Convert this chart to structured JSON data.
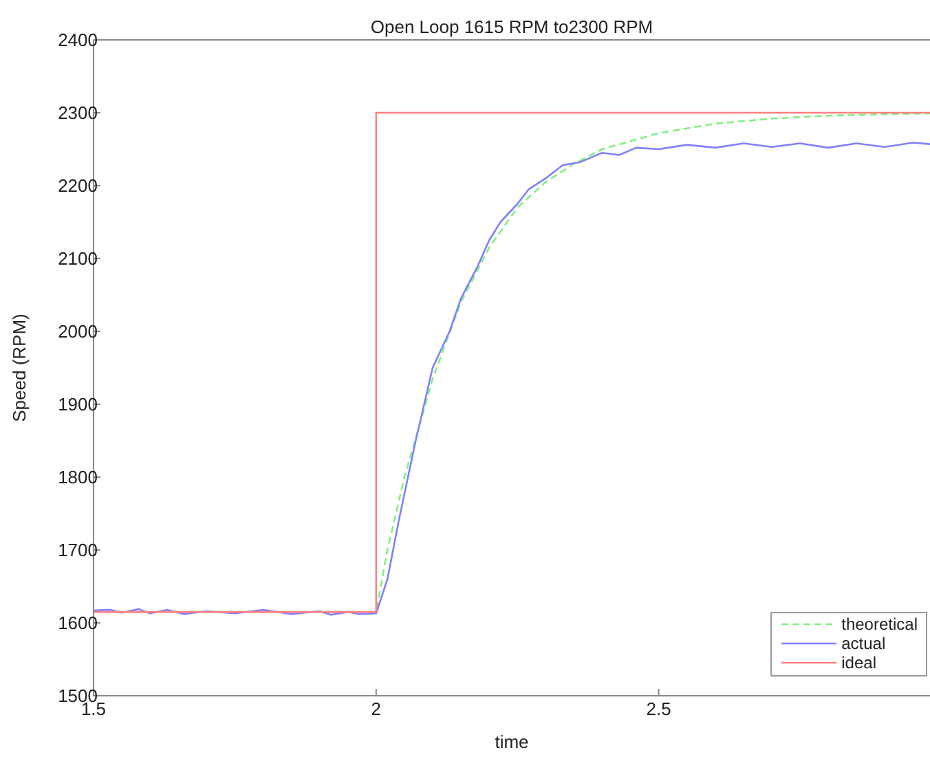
{
  "chart_data": {
    "type": "line",
    "title": "Open Loop 1615 RPM to2300 RPM",
    "xlabel": "time",
    "ylabel": "Speed (RPM)",
    "xlim": [
      1.5,
      2.98
    ],
    "xticks": [
      1.5,
      2,
      2.5
    ],
    "ylim": [
      1500,
      2400
    ],
    "yticks": [
      1500,
      1600,
      1700,
      1800,
      1900,
      2000,
      2100,
      2200,
      2300,
      2400
    ],
    "grid": false,
    "legend": "bottom right",
    "marker": "none",
    "series": [
      {
        "name": "theoretical",
        "color": "#80f080",
        "line_style": "dashed",
        "x": [
          1.5,
          2,
          2.02,
          2.05,
          2.08,
          2.1,
          2.15,
          2.2,
          2.25,
          2.3,
          2.35,
          2.4,
          2.5,
          2.6,
          2.7,
          2.8,
          2.9,
          2.98
        ],
        "values": [
          1615,
          1615,
          1700,
          1800,
          1880,
          1935,
          2040,
          2115,
          2170,
          2205,
          2230,
          2250,
          2272,
          2285,
          2292,
          2296,
          2298,
          2299
        ]
      },
      {
        "name": "actual",
        "color": "#8080ff",
        "line_style": "solid",
        "x": [
          1.5,
          1.53,
          1.55,
          1.58,
          1.6,
          1.63,
          1.66,
          1.7,
          1.75,
          1.8,
          1.85,
          1.9,
          1.92,
          1.95,
          1.97,
          2,
          2.02,
          2.04,
          2.07,
          2.1,
          2.13,
          2.15,
          2.18,
          2.2,
          2.22,
          2.25,
          2.27,
          2.3,
          2.33,
          2.36,
          2.4,
          2.43,
          2.46,
          2.5,
          2.55,
          2.6,
          2.65,
          2.7,
          2.75,
          2.8,
          2.85,
          2.9,
          2.95,
          2.98
        ],
        "values": [
          1617,
          1618,
          1614,
          1619,
          1613,
          1618,
          1612,
          1616,
          1613,
          1618,
          1612,
          1616,
          1611,
          1615,
          1612,
          1613,
          1660,
          1740,
          1850,
          1950,
          2000,
          2045,
          2090,
          2125,
          2150,
          2175,
          2195,
          2210,
          2228,
          2232,
          2245,
          2242,
          2252,
          2250,
          2256,
          2252,
          2258,
          2253,
          2258,
          2252,
          2258,
          2253,
          2259,
          2257
        ]
      },
      {
        "name": "ideal",
        "color": "#ff8080",
        "line_style": "solid",
        "x": [
          1.5,
          2,
          2,
          2.98
        ],
        "values": [
          1615,
          1615,
          2300,
          2300
        ]
      }
    ]
  }
}
